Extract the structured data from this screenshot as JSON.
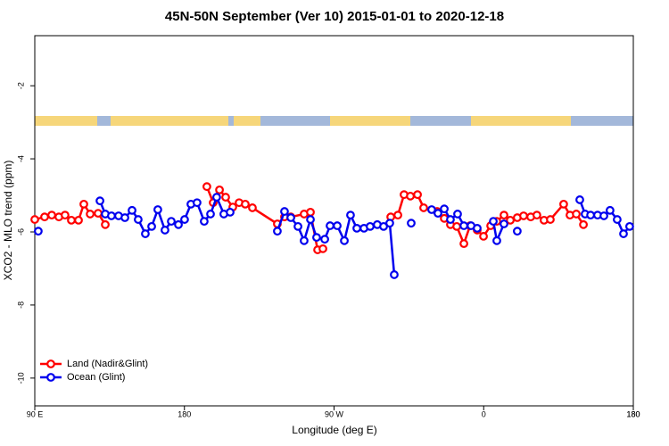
{
  "chart_data": {
    "type": "line",
    "title": "45N-50N September (Ver 10)   2015-01-01 to 2020-12-18",
    "x_label": "Longitude (deg E)",
    "y_label": "XCO2 - MLO trend (ppm)",
    "xlim": [
      90,
      450
    ],
    "xticks": [
      {
        "value": 90,
        "label": "90 E"
      },
      180,
      {
        "value": 270,
        "label": "90 W"
      },
      {
        "value": 360,
        "label": "0"
      },
      {
        "value": 450,
        "label": "180"
      },
      {
        "value": 450,
        "label": "180"
      }
    ],
    "ylim": [
      -10.76,
      -0.63
    ],
    "yticks": [
      -2,
      -4,
      -6,
      -8,
      -10
    ],
    "legend_position": "bottomleft",
    "series": [
      {
        "name": "Land (Nadir&Glint)",
        "color": "#ff0000",
        "x": [
          90.0,
          95.9,
          100.2,
          104.5,
          108.2,
          112.0,
          116.3,
          119.5,
          123.3,
          128.1,
          132.4,
          null,
          193.5,
          197.3,
          201.1,
          204.8,
          209.1,
          212.9,
          216.6,
          220.9,
          235.9,
          240.2,
          244.0,
          252.0,
          255.8,
          260.1,
          263.3,
          null,
          304.1,
          308.4,
          312.1,
          315.9,
          320.2,
          323.9,
          332.0,
          336.3,
          340.0,
          343.8,
          348.1,
          351.8,
          356.1,
          359.9,
          364.2,
          367.9,
          372.2,
          376.0,
          380.2,
          384.0,
          388.3,
          392.0,
          396.3,
          400.1,
          408.1,
          411.9,
          415.7,
          420.0
        ],
        "values": [
          -5.66,
          -5.59,
          -5.54,
          -5.59,
          -5.54,
          -5.68,
          -5.68,
          -5.24,
          -5.51,
          -5.49,
          -5.8,
          null,
          -4.76,
          -5.2,
          -4.85,
          -5.05,
          -5.32,
          -5.2,
          -5.24,
          -5.34,
          -5.78,
          -5.59,
          -5.59,
          -5.51,
          -5.46,
          -6.49,
          -6.46,
          null,
          -5.59,
          -5.54,
          -4.98,
          -5.02,
          -4.98,
          -5.34,
          -5.44,
          -5.63,
          -5.8,
          -5.85,
          -6.32,
          -5.83,
          -5.95,
          -6.12,
          -5.83,
          -5.71,
          -5.54,
          -5.68,
          -5.61,
          -5.56,
          -5.59,
          -5.54,
          -5.68,
          -5.66,
          -5.24,
          -5.54,
          -5.51,
          -5.8
        ]
      },
      {
        "name": "Ocean (Glint)",
        "color": "#0000ee",
        "x": [
          92.1,
          null,
          129.2,
          132.4,
          136.1,
          140.4,
          144.2,
          148.5,
          152.2,
          156.5,
          160.3,
          164.0,
          168.3,
          172.1,
          176.4,
          180.1,
          183.9,
          187.6,
          191.9,
          195.7,
          199.4,
          203.7,
          207.5,
          null,
          235.9,
          240.2,
          244.0,
          248.3,
          252.0,
          255.8,
          259.5,
          264.4,
          267.6,
          271.9,
          276.2,
          279.9,
          283.7,
          288.0,
          291.7,
          296.0,
          299.8,
          303.5,
          306.2,
          null,
          316.4,
          null,
          328.7,
          332.5,
          336.3,
          340.0,
          344.3,
          348.1,
          352.4,
          356.1,
          null,
          365.8,
          367.9,
          372.2,
          null,
          380.2,
          null,
          417.8,
          421.0,
          424.3,
          428.5,
          432.3,
          436.0,
          440.3,
          444.1,
          447.8
        ],
        "values": [
          -5.98,
          null,
          -5.15,
          -5.51,
          -5.56,
          -5.56,
          -5.61,
          -5.41,
          -5.66,
          -6.05,
          -5.85,
          -5.39,
          -5.95,
          -5.71,
          -5.8,
          -5.66,
          -5.24,
          -5.2,
          -5.71,
          -5.51,
          -5.05,
          -5.51,
          -5.46,
          null,
          -5.98,
          -5.44,
          -5.61,
          -5.85,
          -6.24,
          -5.66,
          -6.15,
          -6.2,
          -5.83,
          -5.83,
          -6.24,
          -5.54,
          -5.9,
          -5.9,
          -5.85,
          -5.8,
          -5.85,
          -5.76,
          -7.17,
          null,
          -5.76,
          null,
          -5.39,
          -5.49,
          -5.37,
          -5.66,
          -5.51,
          -5.83,
          -5.83,
          -5.9,
          null,
          -5.71,
          -6.24,
          -5.78,
          null,
          -5.98,
          null,
          -5.12,
          -5.51,
          -5.54,
          -5.54,
          -5.56,
          -5.41,
          -5.66,
          -6.05,
          -5.85
        ]
      }
    ]
  }
}
